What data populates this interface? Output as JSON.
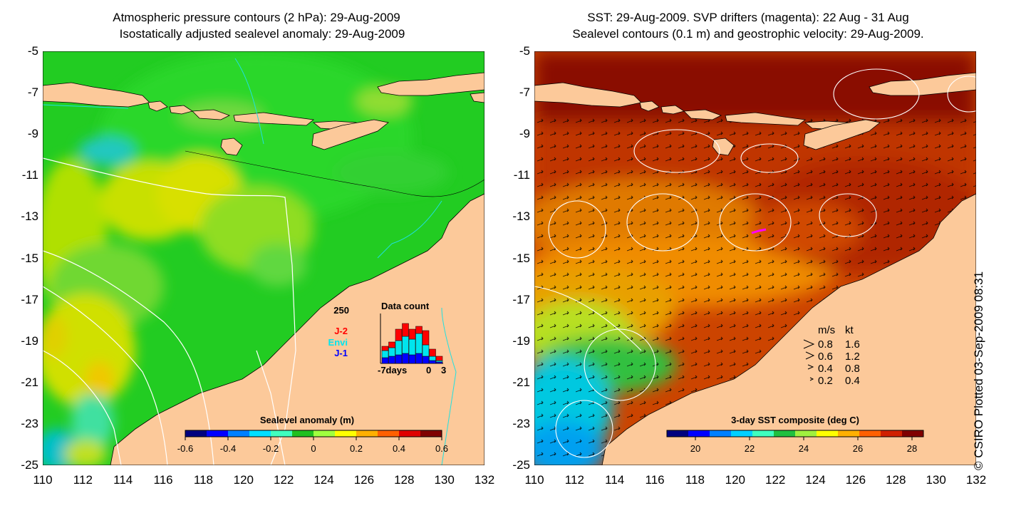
{
  "left_panel": {
    "title_line1": "Atmospheric pressure contours (2 hPa): 29-Aug-2009",
    "title_line2": "Isostatically adjusted sealevel anomaly: 29-Aug-2009",
    "colorbar": {
      "label": "Sealevel anomaly (m)",
      "ticks": [
        "-0.6",
        "-0.4",
        "-0.2",
        "0",
        "0.2",
        "0.4",
        "0.6"
      ],
      "colors": [
        "#00007f",
        "#0000ff",
        "#0080ff",
        "#00e0ff",
        "#40ffbf",
        "#20c020",
        "#a0ff40",
        "#ffff00",
        "#ffb000",
        "#ff6000",
        "#e00000",
        "#800000"
      ]
    },
    "inset": {
      "title": "Data count",
      "ymax_label": "250",
      "legend": [
        {
          "label": "J-2",
          "color": "#ff0000"
        },
        {
          "label": "Envi",
          "color": "#00e5ee"
        },
        {
          "label": "J-1",
          "color": "#0000ff"
        }
      ],
      "xlabel": "-7days",
      "x_ticks": [
        "0",
        "3"
      ]
    }
  },
  "right_panel": {
    "title_line1": "SST: 29-Aug-2009. SVP drifters (magenta): 22 Aug - 31 Aug",
    "title_line2": "Sealevel contours (0.1 m) and geostrophic velocity: 29-Aug-2009.",
    "colorbar": {
      "label": "3-day SST composite (deg C)",
      "ticks": [
        "20",
        "22",
        "24",
        "26",
        "28"
      ],
      "colors": [
        "#00007f",
        "#0000ff",
        "#0080ff",
        "#00d0ff",
        "#40ffbf",
        "#20c040",
        "#a0f040",
        "#ffff00",
        "#ffb000",
        "#ff6000",
        "#d02000",
        "#800000"
      ]
    },
    "velocity_legend": {
      "header_ms": "m/s",
      "header_kt": "kt",
      "rows": [
        {
          "ms": "0.8",
          "kt": "1.6"
        },
        {
          "ms": "0.6",
          "kt": "1.2"
        },
        {
          "ms": "0.4",
          "kt": "0.8"
        },
        {
          "ms": "0.2",
          "kt": "0.4"
        }
      ]
    }
  },
  "axes": {
    "lon_ticks": [
      "110",
      "112",
      "114",
      "116",
      "118",
      "120",
      "122",
      "124",
      "126",
      "128",
      "130",
      "132"
    ],
    "lat_ticks": [
      "-5",
      "-7",
      "-9",
      "-11",
      "-13",
      "-15",
      "-17",
      "-19",
      "-21",
      "-23",
      "-25"
    ]
  },
  "copyright": "© CSIRO Plotted 03-Sep-2009 08:31"
}
